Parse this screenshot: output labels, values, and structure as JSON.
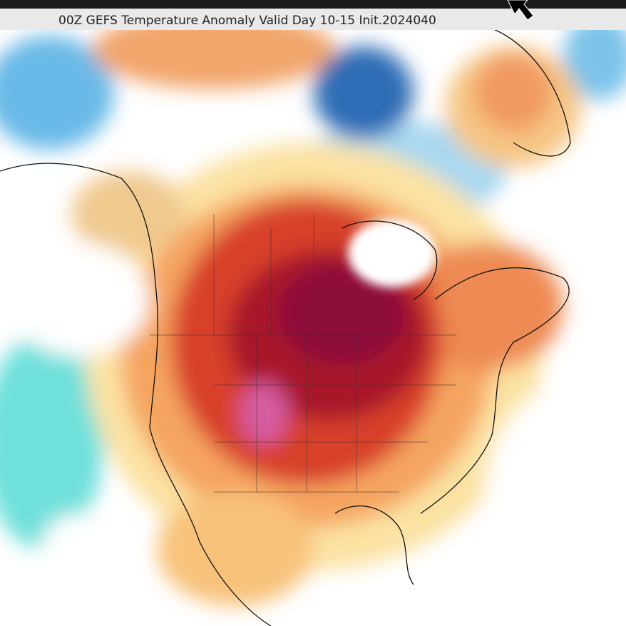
{
  "header": {
    "title": "00Z GEFS Temperature Anomaly Valid Day 10-15 Init.2024040"
  }
}
